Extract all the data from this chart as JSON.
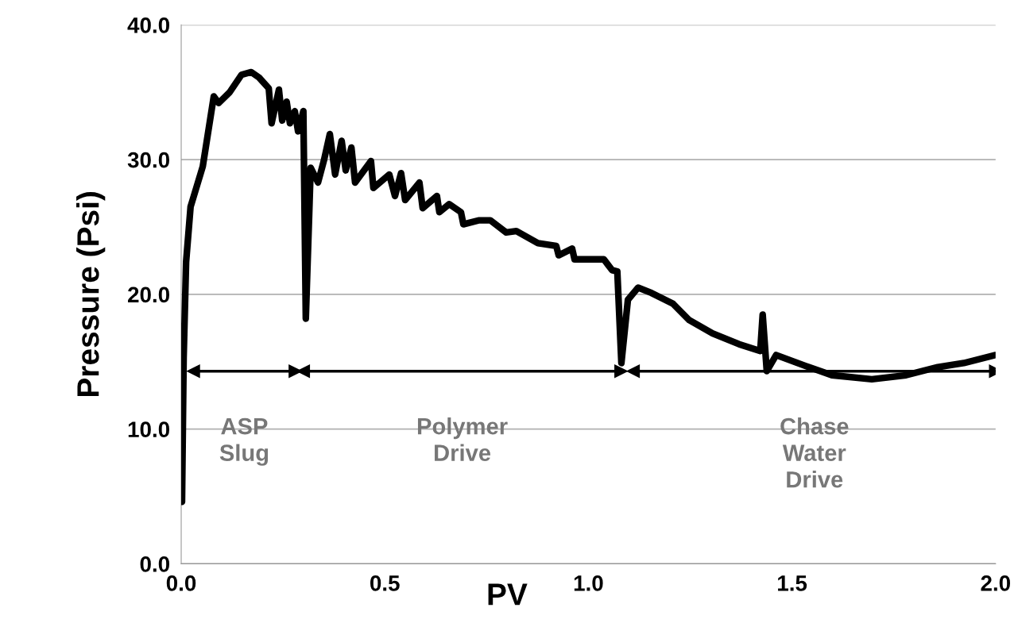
{
  "chart_data": {
    "type": "line",
    "xlabel": "PV",
    "ylabel": "Pressure (Psi)",
    "xlim": [
      0,
      2
    ],
    "ylim": [
      0,
      40
    ],
    "xticks": [
      {
        "value": 0,
        "label": "0.0"
      },
      {
        "value": 0.5,
        "label": "0.5"
      },
      {
        "value": 1,
        "label": "1.0"
      },
      {
        "value": 1.5,
        "label": "1.5"
      },
      {
        "value": 2,
        "label": "2.0"
      }
    ],
    "yticks": [
      {
        "value": 0,
        "label": "0.0"
      },
      {
        "value": 10,
        "label": "10.0"
      },
      {
        "value": 20,
        "label": "20.0"
      },
      {
        "value": 30,
        "label": "30.0"
      },
      {
        "value": 40,
        "label": "40.0"
      }
    ],
    "grid": "y",
    "marker": "none",
    "line_style": "solid",
    "series": [
      {
        "color": "#000000",
        "x": [
          0.002,
          0.006,
          0.012,
          0.023,
          0.053,
          0.08,
          0.092,
          0.119,
          0.148,
          0.172,
          0.191,
          0.215,
          0.222,
          0.24,
          0.248,
          0.259,
          0.267,
          0.279,
          0.287,
          0.3,
          0.306,
          0.318,
          0.336,
          0.351,
          0.365,
          0.378,
          0.394,
          0.404,
          0.418,
          0.427,
          0.466,
          0.472,
          0.511,
          0.525,
          0.54,
          0.55,
          0.585,
          0.593,
          0.628,
          0.634,
          0.658,
          0.687,
          0.693,
          0.732,
          0.759,
          0.798,
          0.823,
          0.876,
          0.921,
          0.927,
          0.96,
          0.966,
          1.038,
          1.058,
          1.071,
          1.081,
          1.097,
          1.122,
          1.155,
          1.208,
          1.247,
          1.305,
          1.37,
          1.422,
          1.428,
          1.438,
          1.461,
          1.532,
          1.598,
          1.696,
          1.78,
          1.858,
          1.922,
          2.0
        ],
        "values": [
          4.6,
          15.3,
          22.4,
          26.5,
          29.5,
          34.7,
          34.2,
          35.0,
          36.3,
          36.5,
          36.1,
          35.3,
          32.7,
          35.2,
          32.9,
          34.3,
          32.7,
          33.6,
          32.1,
          33.6,
          18.2,
          29.4,
          28.3,
          30.0,
          31.9,
          28.9,
          31.4,
          29.2,
          30.9,
          28.3,
          29.9,
          27.9,
          28.9,
          27.3,
          29.0,
          27.0,
          28.3,
          26.4,
          27.3,
          26.1,
          26.7,
          26.1,
          25.2,
          25.5,
          25.5,
          24.6,
          24.7,
          23.8,
          23.6,
          22.9,
          23.4,
          22.6,
          22.6,
          21.8,
          21.7,
          14.9,
          19.6,
          20.5,
          20.1,
          19.3,
          18.1,
          17.1,
          16.3,
          15.8,
          18.5,
          14.3,
          15.5,
          14.7,
          14.0,
          13.7,
          14.0,
          14.6,
          14.9,
          15.5
        ]
      },
      {
        "color": "#000000",
        "marker": "triangle",
        "x": [
          0.03,
          0.28
        ],
        "values": [
          14.3,
          14.3
        ]
      },
      {
        "color": "#000000",
        "marker": "triangle",
        "x": [
          0.3,
          1.08
        ],
        "values": [
          14.3,
          14.3
        ]
      },
      {
        "color": "#000000",
        "marker": "triangle",
        "x": [
          1.11,
          2.0
        ],
        "values": [
          14.3,
          14.3
        ]
      }
    ],
    "annotations": [
      {
        "text": "ASP\nSlug",
        "x": 0.155,
        "y": 14.3
      },
      {
        "text": "Polymer\nDrive",
        "x": 0.69,
        "y": 14.3
      },
      {
        "text": "Chase\nWater\nDrive",
        "x": 1.555,
        "y": 14.3
      }
    ]
  }
}
